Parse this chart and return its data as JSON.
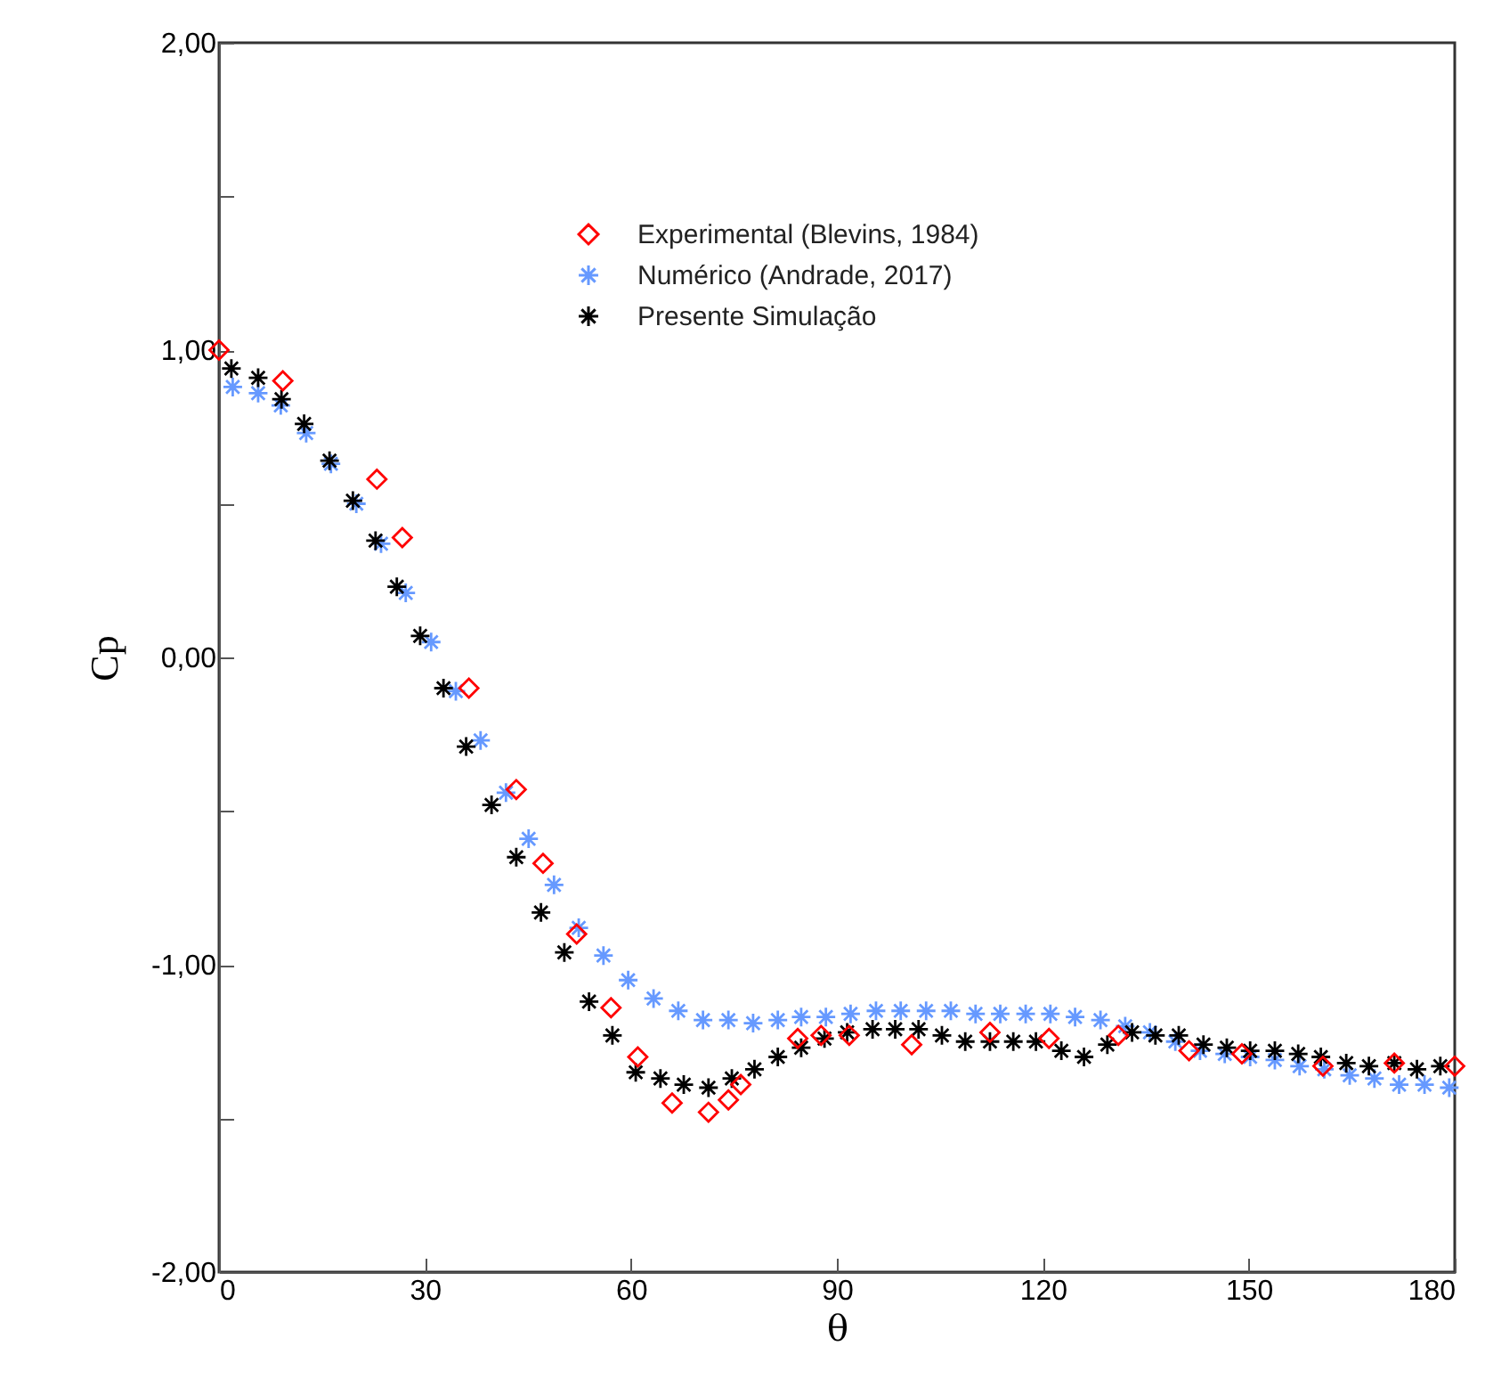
{
  "chart_data": {
    "type": "scatter",
    "xlabel": "θ",
    "ylabel": "Cp",
    "xlim": [
      0,
      180
    ],
    "ylim": [
      -2,
      2
    ],
    "xticks": [
      0,
      30,
      60,
      90,
      120,
      150,
      180
    ],
    "yticks": [
      {
        "value": -2,
        "label": "-2,00"
      },
      {
        "value": -1.5,
        "label": null
      },
      {
        "value": -1,
        "label": "-1,00"
      },
      {
        "value": -0.5,
        "label": null
      },
      {
        "value": 0,
        "label": "0,00"
      },
      {
        "value": 0.5,
        "label": null
      },
      {
        "value": 1,
        "label": "1,00"
      },
      {
        "value": 1.5,
        "label": null
      },
      {
        "value": 2,
        "label": "2,00"
      }
    ],
    "grid": false,
    "legend": "top right",
    "series": [
      {
        "name": "Experimental (Blevins, 1984)",
        "color": "#ff0000",
        "marker": "diamond",
        "x": [
          0,
          9.3,
          23,
          26.7,
          36.4,
          43.3,
          47.2,
          52.1,
          57.1,
          61,
          66,
          71.3,
          74.2,
          76,
          84.3,
          87.7,
          91.8,
          100.9,
          112.3,
          120.9,
          131,
          141.3,
          149,
          160.8,
          171.2,
          180
        ],
        "values": [
          1.0,
          0.9,
          0.58,
          0.39,
          -0.1,
          -0.43,
          -0.67,
          -0.9,
          -1.14,
          -1.3,
          -1.45,
          -1.48,
          -1.44,
          -1.39,
          -1.24,
          -1.23,
          -1.23,
          -1.26,
          -1.22,
          -1.24,
          -1.23,
          -1.28,
          -1.29,
          -1.33,
          -1.32,
          -1.33
        ]
      },
      {
        "name": "Numérico (Andrade, 2017)",
        "color": "#6699ff",
        "marker": "cross",
        "x": [
          2,
          5.7,
          9,
          12.7,
          16.3,
          20,
          23.6,
          27.2,
          30.9,
          34.5,
          38.1,
          41.8,
          45.1,
          48.8,
          52.4,
          56,
          59.6,
          63.3,
          66.9,
          70.5,
          74.2,
          77.8,
          81.4,
          84.8,
          88.4,
          92,
          95.7,
          99.3,
          103,
          106.6,
          110.2,
          113.8,
          117.5,
          121.1,
          124.7,
          128.4,
          132,
          135.6,
          139.3,
          142.9,
          146.5,
          150.2,
          153.8,
          157.4,
          161,
          164.7,
          168.3,
          171.9,
          175.6,
          179.2
        ],
        "values": [
          0.88,
          0.86,
          0.82,
          0.73,
          0.63,
          0.5,
          0.37,
          0.21,
          0.05,
          -0.11,
          -0.27,
          -0.44,
          -0.59,
          -0.74,
          -0.88,
          -0.97,
          -1.05,
          -1.11,
          -1.15,
          -1.18,
          -1.18,
          -1.19,
          -1.18,
          -1.17,
          -1.17,
          -1.16,
          -1.15,
          -1.15,
          -1.15,
          -1.15,
          -1.16,
          -1.16,
          -1.16,
          -1.16,
          -1.17,
          -1.18,
          -1.2,
          -1.22,
          -1.25,
          -1.28,
          -1.29,
          -1.3,
          -1.31,
          -1.33,
          -1.34,
          -1.36,
          -1.37,
          -1.39,
          -1.39,
          -1.4
        ]
      },
      {
        "name": "Presente Simulação",
        "color": "#000000",
        "marker": "cross",
        "x": [
          1.8,
          5.7,
          9.1,
          12.4,
          16.1,
          19.5,
          22.8,
          25.9,
          29.3,
          32.7,
          36,
          39.7,
          43.3,
          46.9,
          50.3,
          53.9,
          57.3,
          60.7,
          64.3,
          67.7,
          71.3,
          74.7,
          78,
          81.4,
          84.8,
          88.2,
          91.5,
          95.2,
          98.5,
          101.9,
          105.3,
          108.7,
          112.3,
          115.7,
          119,
          122.7,
          126,
          129.4,
          133,
          136.4,
          139.8,
          143.4,
          146.8,
          150.2,
          153.8,
          157.2,
          160.5,
          164.2,
          167.5,
          171.2,
          174.5,
          177.9
        ],
        "values": [
          0.94,
          0.91,
          0.84,
          0.76,
          0.64,
          0.51,
          0.38,
          0.23,
          0.07,
          -0.1,
          -0.29,
          -0.48,
          -0.65,
          -0.83,
          -0.96,
          -1.12,
          -1.23,
          -1.35,
          -1.37,
          -1.39,
          -1.4,
          -1.37,
          -1.34,
          -1.3,
          -1.27,
          -1.24,
          -1.22,
          -1.21,
          -1.21,
          -1.21,
          -1.23,
          -1.25,
          -1.25,
          -1.25,
          -1.25,
          -1.28,
          -1.3,
          -1.26,
          -1.22,
          -1.23,
          -1.23,
          -1.26,
          -1.27,
          -1.28,
          -1.28,
          -1.29,
          -1.3,
          -1.32,
          -1.33,
          -1.32,
          -1.34,
          -1.33
        ]
      }
    ]
  }
}
